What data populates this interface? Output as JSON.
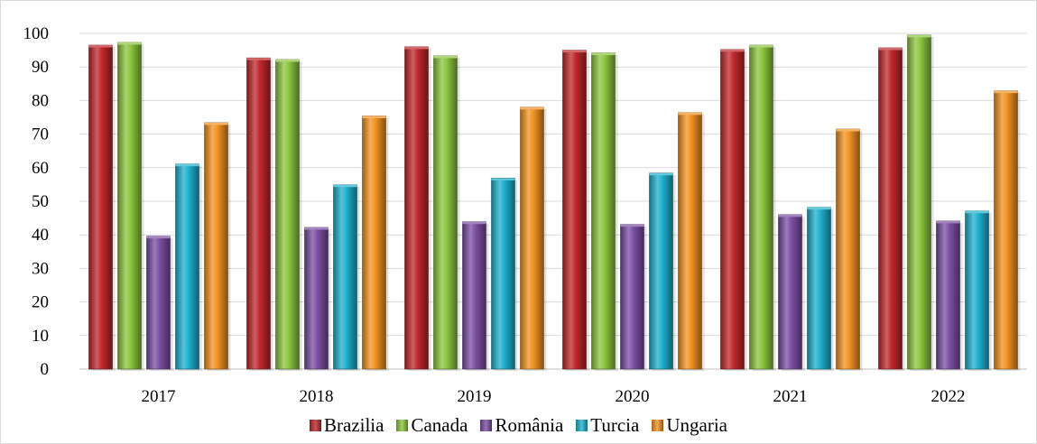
{
  "chart_data": {
    "type": "bar",
    "categories": [
      "2017",
      "2018",
      "2019",
      "2020",
      "2021",
      "2022"
    ],
    "series": [
      {
        "name": "Brazilia",
        "color": "#c0282c",
        "values": [
          96.5,
          92.7,
          96,
          95,
          95.2,
          95.7
        ]
      },
      {
        "name": "Canada",
        "color": "#8cc63f",
        "values": [
          97.3,
          92.2,
          93.3,
          94.2,
          96.5,
          99.5
        ]
      },
      {
        "name": "România",
        "color": "#7b4fa3",
        "values": [
          39.6,
          42.2,
          43.9,
          43.1,
          46,
          44.1
        ]
      },
      {
        "name": "Turcia",
        "color": "#1fb0cf",
        "values": [
          61.1,
          54.9,
          56.9,
          58.4,
          48.2,
          47.1
        ]
      },
      {
        "name": "Ungaria",
        "color": "#f39322",
        "values": [
          73.4,
          75.4,
          78,
          76.4,
          71.5,
          82.9
        ]
      }
    ],
    "ylim": [
      0,
      100
    ],
    "yticks": [
      "0",
      "10",
      "20",
      "30",
      "40",
      "50",
      "60",
      "70",
      "80",
      "90",
      "100"
    ],
    "grid": true,
    "legend_position": "bottom",
    "title": "",
    "xlabel": "",
    "ylabel": ""
  }
}
